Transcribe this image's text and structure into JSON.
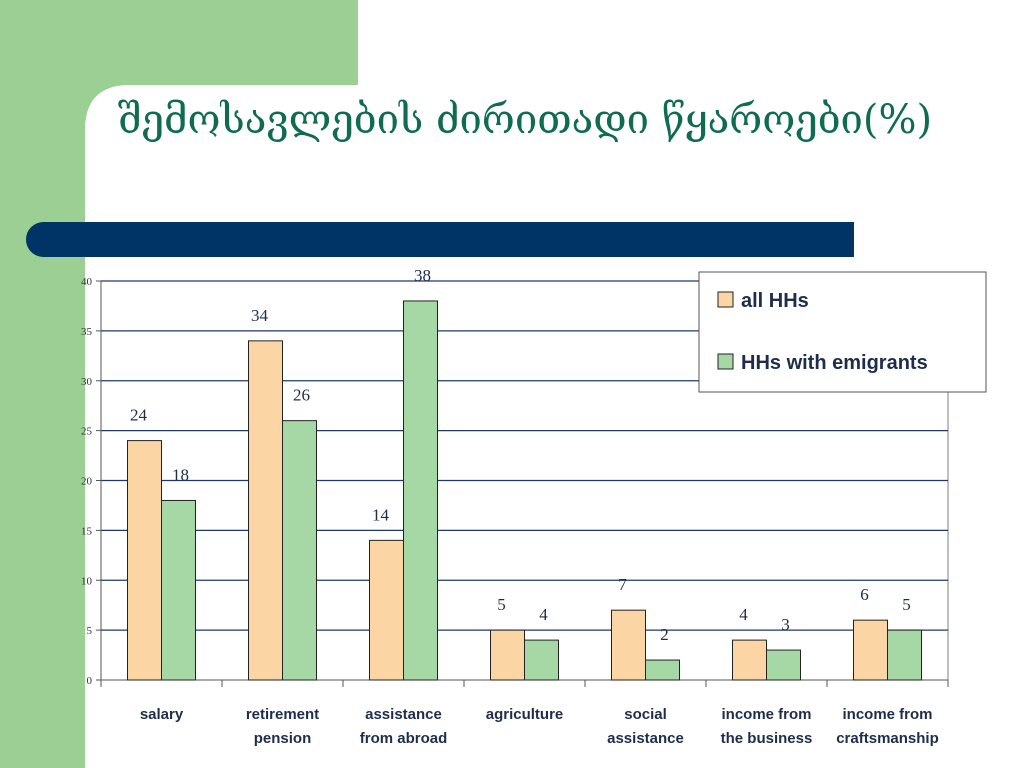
{
  "slide": {
    "title": "შემოსავლების ძირითადი წყაროები(%)",
    "colors": {
      "side_panel": "#9ccf94",
      "title_text": "#0f6b51",
      "title_bar": "#003366"
    }
  },
  "chart_data": {
    "type": "bar",
    "title": "",
    "xlabel": "",
    "ylabel": "",
    "ylim": [
      0,
      40
    ],
    "yticks": [
      "0",
      "5",
      "10",
      "15",
      "20",
      "25",
      "30",
      "35",
      "40"
    ],
    "grid": true,
    "legend_position": "top-right",
    "categories": [
      [
        "salary"
      ],
      [
        "retirement",
        "pension"
      ],
      [
        "assistance",
        "from abroad"
      ],
      [
        "agriculture"
      ],
      [
        "social",
        "assistance"
      ],
      [
        "income from",
        "the business"
      ],
      [
        "income from",
        "craftsmanship"
      ]
    ],
    "series": [
      {
        "name": "all HHs",
        "color": "#fcd5a4",
        "values": [
          24,
          34,
          14,
          5,
          7,
          4,
          6
        ]
      },
      {
        "name": "HHs with emigrants",
        "color": "#a6d8a6",
        "values": [
          18,
          26,
          38,
          4,
          2,
          3,
          5
        ]
      }
    ]
  }
}
